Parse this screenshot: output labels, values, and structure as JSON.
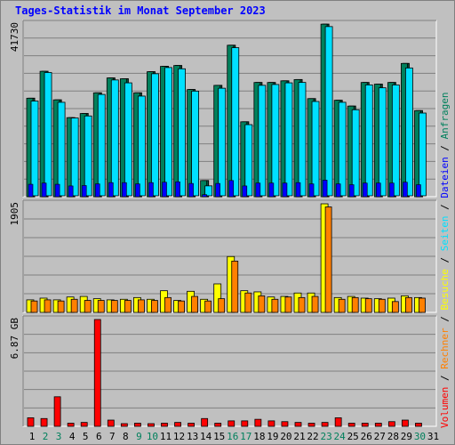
{
  "title": "Tages-Statistik im Monat September 2023",
  "colors": {
    "background": "#c0c0c0",
    "title": "#0000ff",
    "anfragen": "#00805c",
    "dateien": "#0000ff",
    "seiten": "#00e0ff",
    "besuche": "#ffff00",
    "rechner": "#ff8000",
    "volumen": "#ff0000",
    "weekend_label": "#00805c",
    "weekday_label": "#000000"
  },
  "right_legend": [
    {
      "text": "Volumen",
      "color": "#ff0000"
    },
    {
      "text": " / ",
      "color": "#000000"
    },
    {
      "text": "Rechner",
      "color": "#ff8000"
    },
    {
      "text": " / ",
      "color": "#000000"
    },
    {
      "text": "Besuche",
      "color": "#ffff00"
    },
    {
      "text": " / ",
      "color": "#000000"
    },
    {
      "text": "Seiten",
      "color": "#00e0ff"
    },
    {
      "text": " / ",
      "color": "#000000"
    },
    {
      "text": "Dateien",
      "color": "#0000ff"
    },
    {
      "text": " / ",
      "color": "#000000"
    },
    {
      "text": "Anfragen",
      "color": "#00805c"
    }
  ],
  "chart_data": [
    {
      "type": "bar",
      "panel": "top",
      "categories": [
        "1",
        "2",
        "3",
        "4",
        "5",
        "6",
        "7",
        "8",
        "9",
        "10",
        "11",
        "12",
        "13",
        "14",
        "15",
        "16",
        "17",
        "18",
        "19",
        "20",
        "21",
        "22",
        "23",
        "24",
        "25",
        "26",
        "27",
        "28",
        "29",
        "30",
        "31"
      ],
      "weekend_days": [
        "2",
        "3",
        "9",
        "10",
        "16",
        "17",
        "23",
        "24",
        "30"
      ],
      "ytick_label": "41730",
      "ylim": [
        0,
        41730
      ],
      "series": [
        {
          "name": "Anfragen",
          "values": [
            23800,
            30300,
            23400,
            19100,
            20100,
            25100,
            28700,
            28500,
            25100,
            30200,
            31500,
            31700,
            25900,
            3900,
            26900,
            36600,
            18100,
            27600,
            27600,
            28000,
            28300,
            23700,
            41700,
            23300,
            21900,
            27600,
            27200,
            27600,
            32200,
            20800,
            0
          ]
        },
        {
          "name": "Seiten",
          "values": [
            22900,
            29800,
            22600,
            18800,
            19300,
            24500,
            28000,
            27300,
            24100,
            29500,
            31000,
            30700,
            25300,
            2400,
            26000,
            35800,
            17200,
            26700,
            26900,
            27300,
            27400,
            22800,
            40900,
            22600,
            20800,
            26800,
            26100,
            26800,
            30900,
            20000,
            0
          ]
        },
        {
          "name": "Dateien",
          "values": [
            3000,
            3300,
            3000,
            2600,
            2700,
            3100,
            3400,
            3400,
            3100,
            3400,
            3500,
            3600,
            3200,
            500,
            3200,
            3900,
            2600,
            3300,
            3300,
            3300,
            3400,
            3100,
            4000,
            3100,
            2900,
            3300,
            3300,
            3300,
            3500,
            2900,
            0
          ]
        }
      ]
    },
    {
      "type": "bar",
      "panel": "middle",
      "categories": [
        "1",
        "2",
        "3",
        "4",
        "5",
        "6",
        "7",
        "8",
        "9",
        "10",
        "11",
        "12",
        "13",
        "14",
        "15",
        "16",
        "17",
        "18",
        "19",
        "20",
        "21",
        "22",
        "23",
        "24",
        "25",
        "26",
        "27",
        "28",
        "29",
        "30",
        "31"
      ],
      "ytick_label": "1905",
      "ylim": [
        0,
        1905
      ],
      "series": [
        {
          "name": "Besuche",
          "values": [
            220,
            250,
            220,
            270,
            280,
            240,
            220,
            230,
            260,
            230,
            380,
            210,
            370,
            230,
            500,
            980,
            380,
            360,
            270,
            280,
            340,
            340,
            1905,
            260,
            280,
            250,
            240,
            250,
            290,
            260,
            0
          ]
        },
        {
          "name": "Rechner",
          "values": [
            200,
            220,
            200,
            230,
            210,
            210,
            210,
            210,
            220,
            210,
            260,
            200,
            280,
            200,
            240,
            900,
            340,
            290,
            230,
            270,
            260,
            280,
            1850,
            230,
            260,
            240,
            230,
            190,
            260,
            250,
            0
          ]
        }
      ]
    },
    {
      "type": "bar",
      "panel": "bottom",
      "categories": [
        "1",
        "2",
        "3",
        "4",
        "5",
        "6",
        "7",
        "8",
        "9",
        "10",
        "11",
        "12",
        "13",
        "14",
        "15",
        "16",
        "17",
        "18",
        "19",
        "20",
        "21",
        "22",
        "23",
        "24",
        "25",
        "26",
        "27",
        "28",
        "29",
        "30",
        "31"
      ],
      "ytick_label": "6.87 GB",
      "ylim": [
        0,
        6.87
      ],
      "series": [
        {
          "name": "Volumen",
          "values": [
            0.55,
            0.5,
            1.9,
            0.2,
            0.25,
            6.87,
            0.4,
            0.15,
            0.2,
            0.15,
            0.2,
            0.25,
            0.2,
            0.5,
            0.2,
            0.35,
            0.35,
            0.45,
            0.35,
            0.3,
            0.25,
            0.2,
            0.25,
            0.55,
            0.2,
            0.2,
            0.2,
            0.3,
            0.4,
            0.2,
            0
          ]
        }
      ]
    }
  ]
}
